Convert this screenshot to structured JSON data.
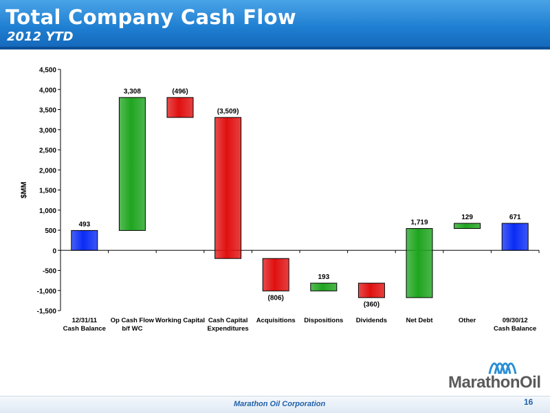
{
  "header": {
    "title": "Total Company Cash Flow",
    "subtitle": "2012 YTD"
  },
  "chart_data": {
    "type": "bar",
    "subtype": "waterfall",
    "ylabel": "$MM",
    "ylim": [
      -1500,
      4500
    ],
    "yticks": [
      -1500,
      -1000,
      -500,
      0,
      500,
      1000,
      1500,
      2000,
      2500,
      3000,
      3500,
      4000,
      4500
    ],
    "ytick_labels": [
      "-1,500",
      "-1,000",
      "-500",
      "0",
      "500",
      "1,000",
      "1,500",
      "2,000",
      "2,500",
      "3,000",
      "3,500",
      "4,000",
      "4,500"
    ],
    "grid": false,
    "categories": [
      [
        "12/31/11",
        "Cash Balance"
      ],
      [
        "Op Cash Flow",
        "b/f WC"
      ],
      [
        "Working Capital"
      ],
      [
        "Cash Capital",
        "Expenditures"
      ],
      [
        "Acquisitions"
      ],
      [
        "Dispositions"
      ],
      [
        "Dividends"
      ],
      [
        "Net Debt"
      ],
      [
        "Other"
      ],
      [
        "09/30/12",
        "Cash Balance"
      ]
    ],
    "bars": [
      {
        "start": 0,
        "end": 493,
        "label": "493",
        "kind": "total"
      },
      {
        "start": 493,
        "end": 3801,
        "label": "3,308",
        "kind": "increase"
      },
      {
        "start": 3801,
        "end": 3305,
        "label": "(496)",
        "kind": "decrease"
      },
      {
        "start": 3305,
        "end": -204,
        "label": "(3,509)",
        "kind": "decrease"
      },
      {
        "start": -204,
        "end": -1010,
        "label": "(806)",
        "kind": "decrease"
      },
      {
        "start": -1010,
        "end": -817,
        "label": "193",
        "kind": "increase"
      },
      {
        "start": -817,
        "end": -1177,
        "label": "(360)",
        "kind": "decrease"
      },
      {
        "start": -1177,
        "end": 542,
        "label": "1,719",
        "kind": "increase"
      },
      {
        "start": 542,
        "end": 671,
        "label": "129",
        "kind": "increase"
      },
      {
        "start": 0,
        "end": 671,
        "label": "671",
        "kind": "total"
      }
    ],
    "colors": {
      "total": "#0a2cf5",
      "increase": "#1fa51f",
      "decrease": "#e01010"
    }
  },
  "logo": {
    "text": "MarathonOil",
    "icon": "marathon-waves-icon"
  },
  "footer": {
    "company": "Marathon Oil Corporation",
    "page": "16"
  }
}
